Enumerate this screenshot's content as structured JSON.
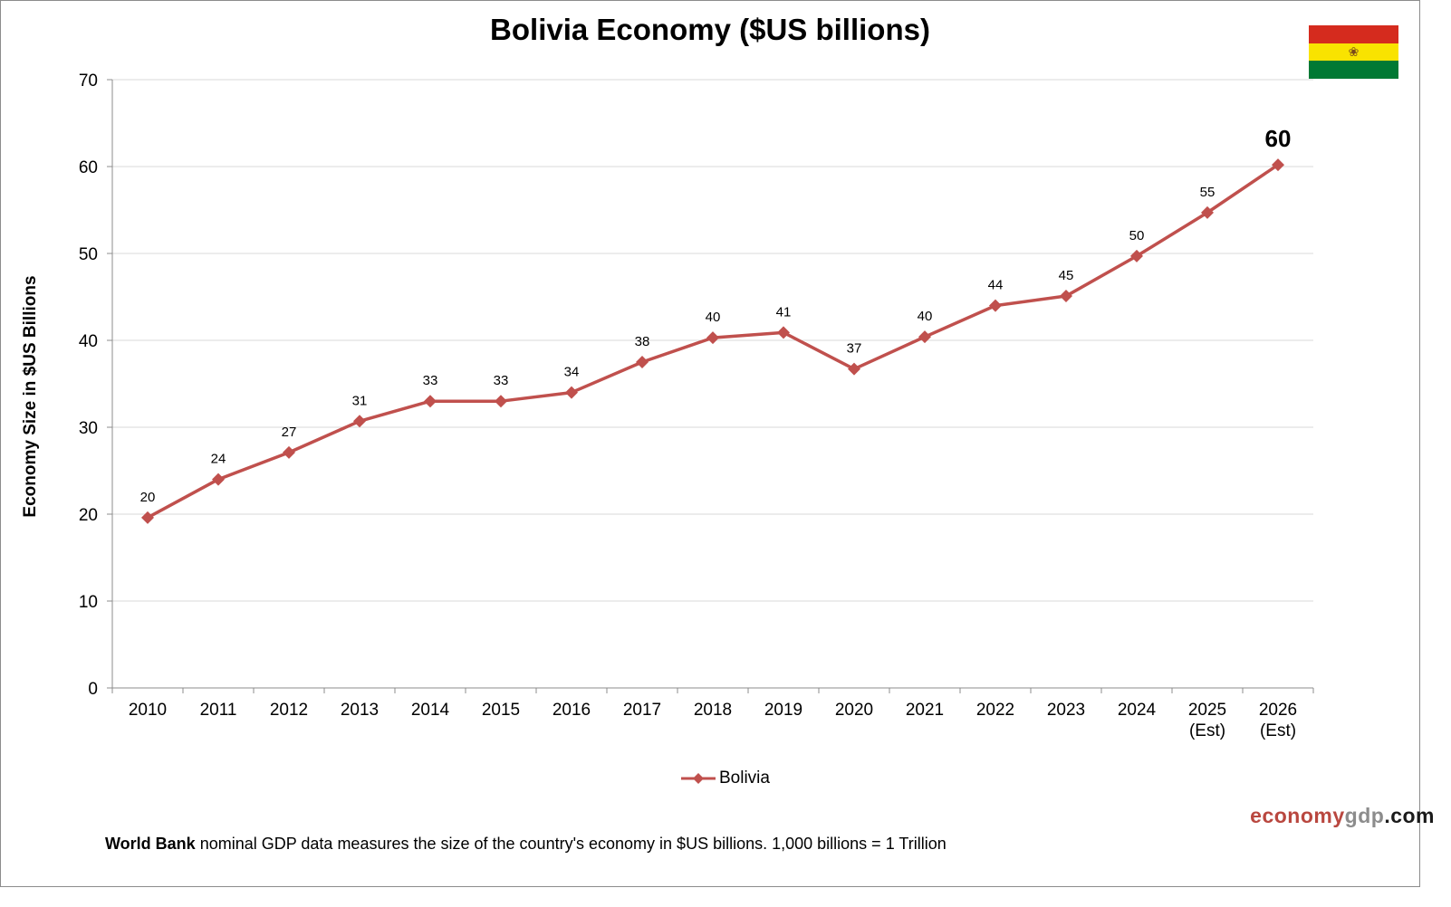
{
  "chart_data": {
    "type": "line",
    "title": "Bolivia Economy ($US billions)",
    "ylabel": "Economy Size in $US Billions",
    "xlabel": "",
    "ylim": [
      0,
      70
    ],
    "yticks": [
      0,
      10,
      20,
      30,
      40,
      50,
      60,
      70
    ],
    "categories": [
      "2010",
      "2011",
      "2012",
      "2013",
      "2014",
      "2015",
      "2016",
      "2017",
      "2018",
      "2019",
      "2020",
      "2021",
      "2022",
      "2023",
      "2024",
      "2025\n(Est)",
      "2026\n(Est)"
    ],
    "series": [
      {
        "name": "Bolivia",
        "color": "#c0504d",
        "values": [
          19.6,
          24.0,
          27.1,
          30.7,
          33.0,
          33.0,
          34.0,
          37.5,
          40.3,
          40.9,
          36.7,
          40.4,
          44.0,
          45.1,
          49.7,
          54.7,
          60.2
        ],
        "labels": [
          "20",
          "24",
          "27",
          "31",
          "33",
          "33",
          "34",
          "38",
          "40",
          "41",
          "37",
          "40",
          "44",
          "45",
          "50",
          "55",
          "60"
        ]
      }
    ],
    "grid": true,
    "legend": "bottom-center"
  },
  "brand": {
    "part1": "economy",
    "part2": "gdp",
    "part3": ".com"
  },
  "footnote": {
    "bold": "World Bank",
    "text": " nominal  GDP data  measures  the size of the country's economy in $US  billions.  1,000 billions  = 1 Trillion"
  },
  "flag": {
    "icon": "bolivia-flag-icon",
    "colors": [
      "#d52b1e",
      "#f9e300",
      "#007934"
    ]
  }
}
